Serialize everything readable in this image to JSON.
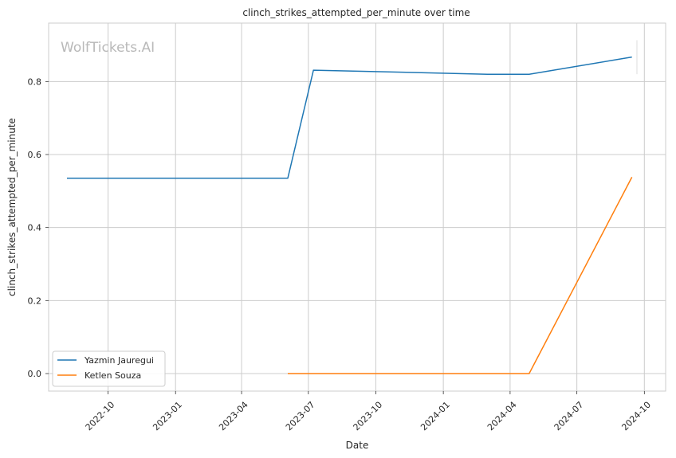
{
  "chart_data": {
    "type": "line",
    "title": "clinch_strikes_attempted_per_minute over time",
    "xlabel": "Date",
    "ylabel": "clinch_strikes_attempted_per_minute",
    "watermark": "WolfTickets.AI",
    "grid": true,
    "legend_position": "lower-left",
    "xlim": [
      "2022-07-12",
      "2024-10-30"
    ],
    "ylim": [
      -0.048,
      0.96
    ],
    "x_ticks": [
      {
        "date": "2022-10-01",
        "label": "2022-10"
      },
      {
        "date": "2023-01-01",
        "label": "2023-01"
      },
      {
        "date": "2023-04-01",
        "label": "2023-04"
      },
      {
        "date": "2023-07-01",
        "label": "2023-07"
      },
      {
        "date": "2023-10-01",
        "label": "2023-10"
      },
      {
        "date": "2024-01-01",
        "label": "2024-01"
      },
      {
        "date": "2024-04-01",
        "label": "2024-04"
      },
      {
        "date": "2024-07-01",
        "label": "2024-07"
      },
      {
        "date": "2024-10-01",
        "label": "2024-10"
      }
    ],
    "y_ticks": [
      {
        "value": 0.0,
        "label": "0.0"
      },
      {
        "value": 0.2,
        "label": "0.2"
      },
      {
        "value": 0.4,
        "label": "0.4"
      },
      {
        "value": 0.6,
        "label": "0.6"
      },
      {
        "value": 0.8,
        "label": "0.8"
      }
    ],
    "series": [
      {
        "name": "Yazmin Jauregui",
        "color": "#1f77b4",
        "points": [
          {
            "x": "2022-08-06",
            "y": 0.535
          },
          {
            "x": "2023-06-03",
            "y": 0.535
          },
          {
            "x": "2023-07-08",
            "y": 0.831
          },
          {
            "x": "2024-03-01",
            "y": 0.82
          },
          {
            "x": "2024-04-27",
            "y": 0.82
          },
          {
            "x": "2024-09-14",
            "y": 0.867
          }
        ]
      },
      {
        "name": "Ketlen Souza",
        "color": "#ff7f0e",
        "points": [
          {
            "x": "2023-06-03",
            "y": 0.0
          },
          {
            "x": "2024-04-27",
            "y": 0.0
          },
          {
            "x": "2024-09-14",
            "y": 0.538
          }
        ]
      }
    ]
  }
}
